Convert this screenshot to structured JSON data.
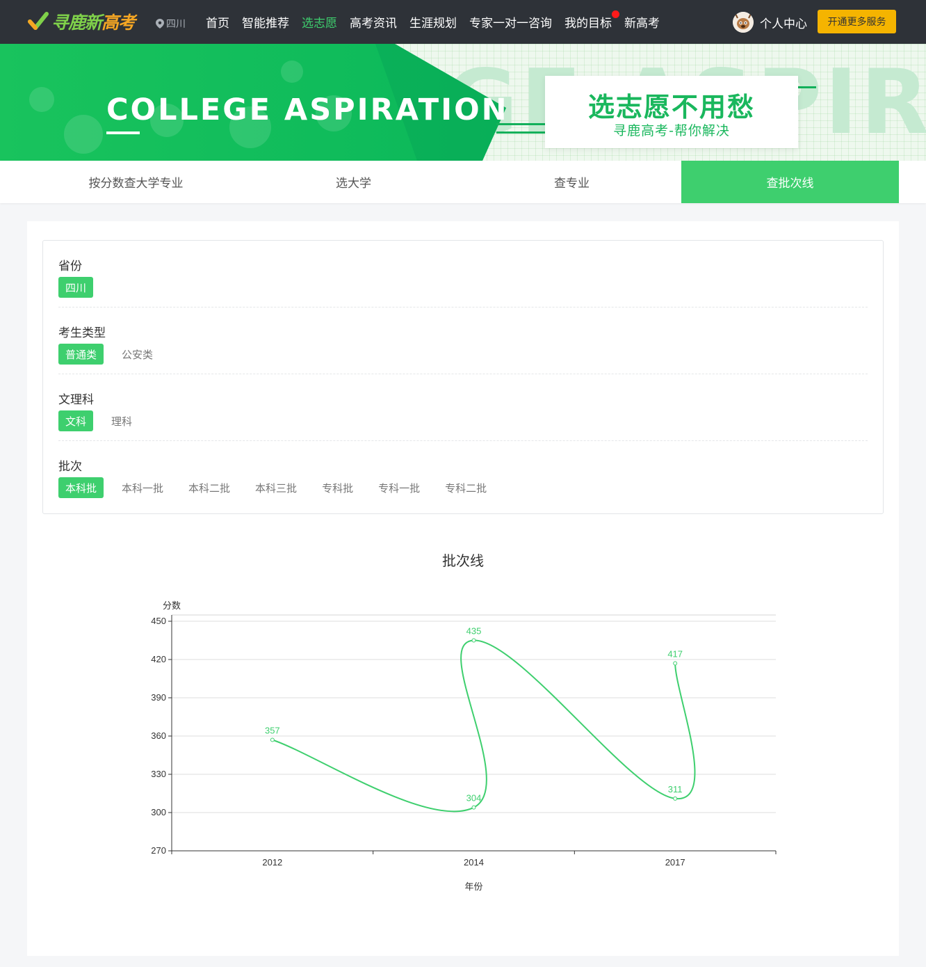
{
  "header": {
    "logo_text_1": "寻鹿新",
    "logo_text_2": "高考",
    "city": "四川",
    "nav": [
      {
        "label": "首页",
        "active": false,
        "dot": false
      },
      {
        "label": "智能推荐",
        "active": false,
        "dot": false
      },
      {
        "label": "选志愿",
        "active": true,
        "dot": false
      },
      {
        "label": "高考资讯",
        "active": false,
        "dot": false
      },
      {
        "label": "生涯规划",
        "active": false,
        "dot": false
      },
      {
        "label": "专家一对一咨询",
        "active": false,
        "dot": false
      },
      {
        "label": "我的目标",
        "active": false,
        "dot": true
      },
      {
        "label": "新高考",
        "active": false,
        "dot": false
      }
    ],
    "user_label": "个人中心",
    "vip_button": "开通更多服务"
  },
  "banner": {
    "title": "COLLEGE ASPIRATION",
    "bg_word": "GE ASPIRAT",
    "slogan_main": "选志愿不用愁",
    "slogan_sub": "寻鹿高考-帮你解决"
  },
  "tabs": [
    {
      "label": "按分数查大学专业",
      "active": false
    },
    {
      "label": "选大学",
      "active": false
    },
    {
      "label": "查专业",
      "active": false
    },
    {
      "label": "查批次线",
      "active": true
    }
  ],
  "filters": [
    {
      "label": "省份",
      "options": [
        "四川"
      ],
      "selected": 0
    },
    {
      "label": "考生类型",
      "options": [
        "普通类",
        "公安类"
      ],
      "selected": 0
    },
    {
      "label": "文理科",
      "options": [
        "文科",
        "理科"
      ],
      "selected": 0
    },
    {
      "label": "批次",
      "options": [
        "本科批",
        "本科一批",
        "本科二批",
        "本科三批",
        "专科批",
        "专科一批",
        "专科二批"
      ],
      "selected": 0
    }
  ],
  "chart_data": {
    "type": "line",
    "title": "批次线",
    "xlabel": "年份",
    "ylabel": "分数",
    "categories": [
      "2012",
      "2014",
      "2017"
    ],
    "x": [
      "2012",
      "2014",
      "2014",
      "2017",
      "2017"
    ],
    "values": [
      357,
      304,
      435,
      311,
      417
    ],
    "ylim": [
      270,
      450
    ],
    "yticks": [
      270,
      300,
      330,
      360,
      390,
      420,
      450
    ],
    "grid": true,
    "color": "#3ecf6e"
  }
}
